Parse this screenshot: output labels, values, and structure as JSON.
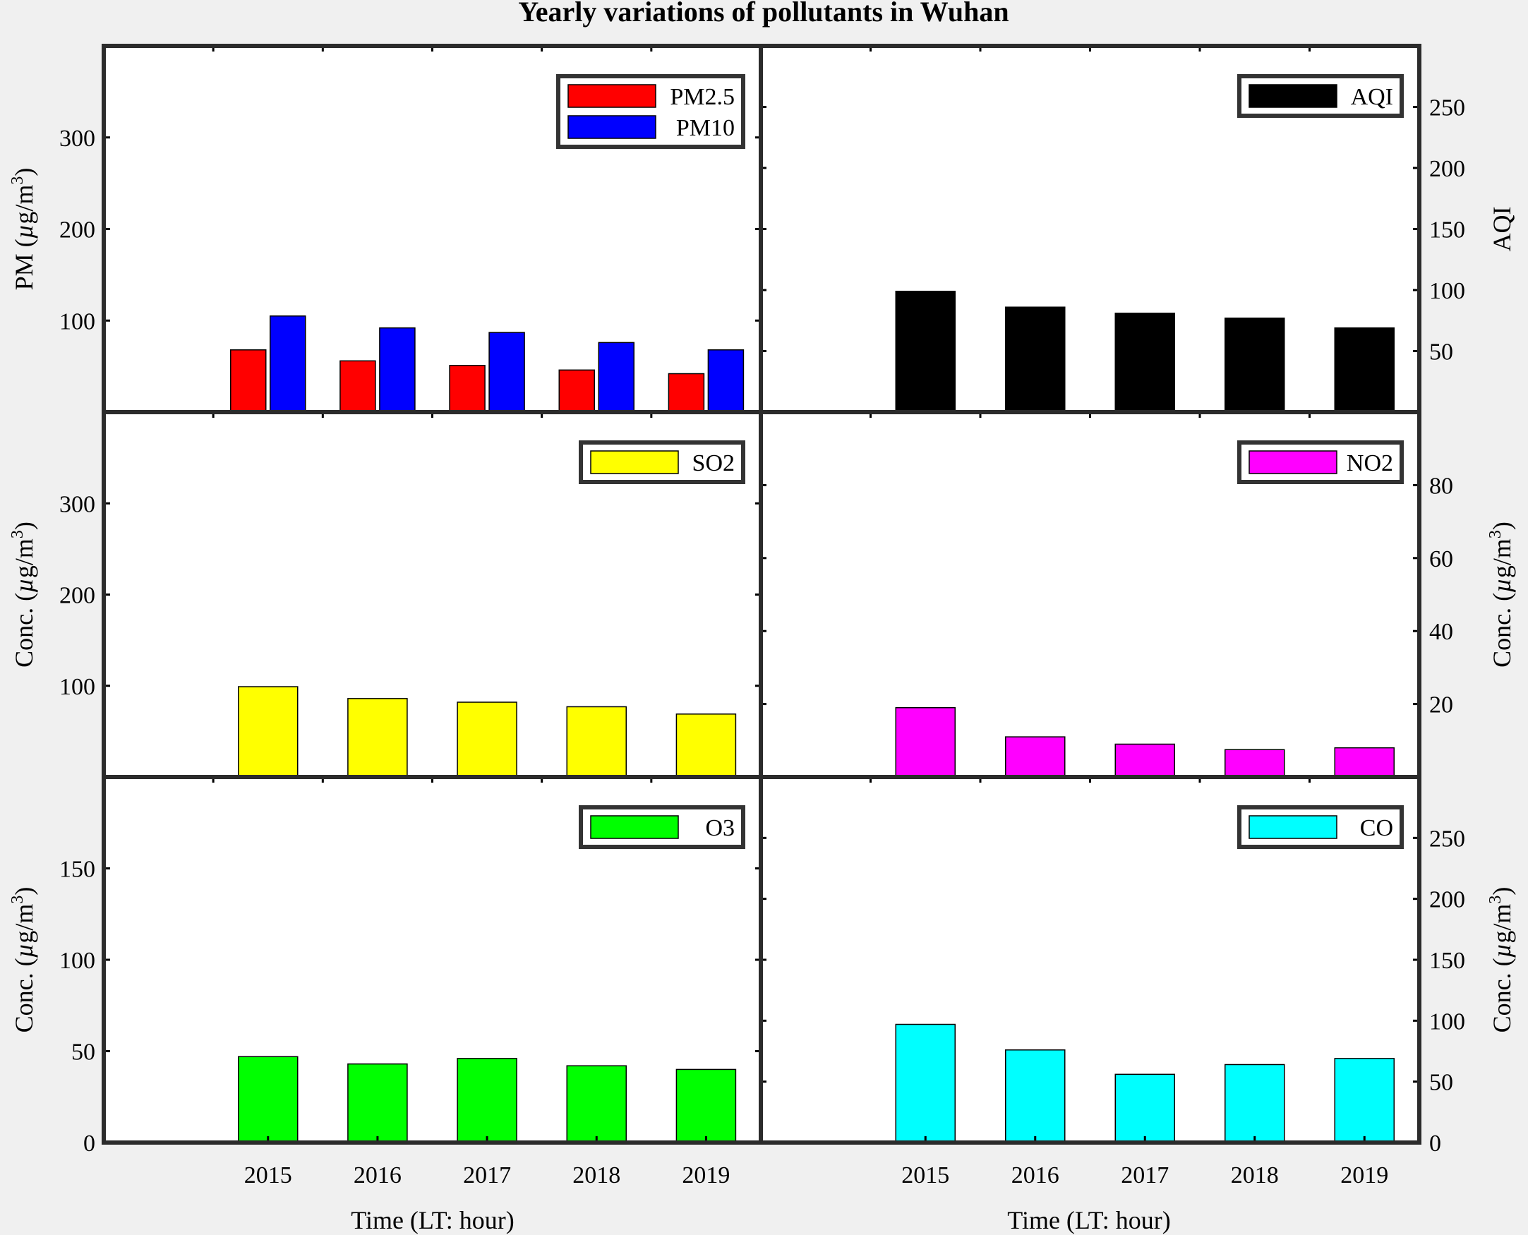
{
  "figure": {
    "title": "Yearly variations of pollutants in Wuhan",
    "xlabel": "Time (LT: hour)"
  },
  "chart_data": [
    {
      "type": "bar",
      "panel": "top-left",
      "categories": [
        "2015",
        "2016",
        "2017",
        "2018",
        "2019"
      ],
      "series": [
        {
          "name": "PM2.5",
          "color": "#ff0000",
          "values": [
            68,
            56,
            51,
            46,
            42
          ]
        },
        {
          "name": "PM10",
          "color": "#0000ff",
          "values": [
            105,
            92,
            87,
            76,
            68
          ]
        }
      ],
      "ylabel": "PM (µg/m³)",
      "ylabel_main": "PM (",
      "ylabel_mu": "µ",
      "ylabel_unit": "g/m",
      "ylabel_sup": "3",
      "ylabel_close": ")",
      "yaxis_side": "left",
      "ylim": [
        0,
        400
      ],
      "yticks": [
        100,
        200,
        300
      ],
      "legend": "top-right",
      "show_xticklabels": false
    },
    {
      "type": "bar",
      "panel": "top-right",
      "categories": [
        "2015",
        "2016",
        "2017",
        "2018",
        "2019"
      ],
      "series": [
        {
          "name": "AQI",
          "color": "#000000",
          "values": [
            99,
            86,
            81,
            77,
            69
          ]
        }
      ],
      "ylabel": "AQI",
      "ylabel_main": "AQI",
      "yaxis_side": "right",
      "ylim": [
        0,
        300
      ],
      "yticks": [
        50,
        100,
        150,
        200,
        250
      ],
      "legend": "top-right",
      "show_xticklabels": false
    },
    {
      "type": "bar",
      "panel": "middle-left",
      "categories": [
        "2015",
        "2016",
        "2017",
        "2018",
        "2019"
      ],
      "series": [
        {
          "name": "SO2",
          "color": "#ffff00",
          "values": [
            99,
            86,
            82,
            77,
            69
          ]
        }
      ],
      "ylabel": "Conc. (µg/m³)",
      "ylabel_main": "Conc. (",
      "ylabel_mu": "µ",
      "ylabel_unit": "g/m",
      "ylabel_sup": "3",
      "ylabel_close": ")",
      "yaxis_side": "left",
      "ylim": [
        0,
        400
      ],
      "yticks": [
        100,
        200,
        300
      ],
      "legend": "top-right",
      "show_xticklabels": false
    },
    {
      "type": "bar",
      "panel": "middle-right",
      "categories": [
        "2015",
        "2016",
        "2017",
        "2018",
        "2019"
      ],
      "series": [
        {
          "name": "NO2",
          "color": "#ff00ff",
          "values": [
            19,
            11,
            9,
            7.5,
            8
          ]
        }
      ],
      "ylabel": "Conc. (µg/m³)",
      "ylabel_main": "Conc. (",
      "ylabel_mu": "µ",
      "ylabel_unit": "g/m",
      "ylabel_sup": "3",
      "ylabel_close": ")",
      "yaxis_side": "right",
      "ylim": [
        0,
        100
      ],
      "yticks": [
        20,
        40,
        60,
        80
      ],
      "legend": "top-right",
      "show_xticklabels": false
    },
    {
      "type": "bar",
      "panel": "bottom-left",
      "categories": [
        "2015",
        "2016",
        "2017",
        "2018",
        "2019"
      ],
      "series": [
        {
          "name": "O3",
          "color": "#00ff00",
          "values": [
            47,
            43,
            46,
            42,
            40
          ]
        }
      ],
      "ylabel": "Conc. (µg/m³)",
      "ylabel_main": "Conc. (",
      "ylabel_mu": "µ",
      "ylabel_unit": "g/m",
      "ylabel_sup": "3",
      "ylabel_close": ")",
      "yaxis_side": "left",
      "ylim": [
        0,
        200
      ],
      "yticks": [
        0,
        50,
        100,
        150
      ],
      "legend": "top-right",
      "show_xticklabels": true
    },
    {
      "type": "bar",
      "panel": "bottom-right",
      "categories": [
        "2015",
        "2016",
        "2017",
        "2018",
        "2019"
      ],
      "series": [
        {
          "name": "CO",
          "color": "#00ffff",
          "values": [
            97,
            76,
            56,
            64,
            69
          ]
        }
      ],
      "ylabel": "Conc. (µg/m³)",
      "ylabel_main": "Conc. (",
      "ylabel_mu": "µ",
      "ylabel_unit": "g/m",
      "ylabel_sup": "3",
      "ylabel_close": ")",
      "yaxis_side": "right",
      "ylim": [
        0,
        300
      ],
      "yticks": [
        0,
        50,
        100,
        150,
        200,
        250
      ],
      "legend": "top-right",
      "show_xticklabels": true
    }
  ]
}
